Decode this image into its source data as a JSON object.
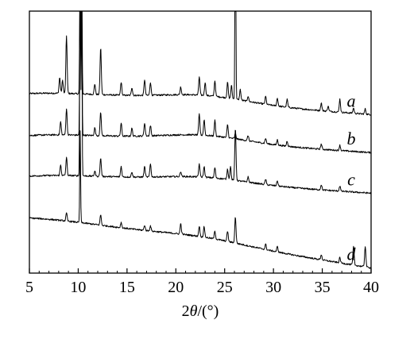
{
  "chart_data": {
    "type": "line",
    "title": "",
    "xlabel_parts": {
      "prefix": "2",
      "symbol": "θ",
      "suffix": "/(°)"
    },
    "ylabel": "",
    "xlim": [
      5,
      40
    ],
    "ylim": [
      0,
      1
    ],
    "x_ticks": [
      5,
      10,
      15,
      20,
      25,
      30,
      35,
      40
    ],
    "y_ticks": [],
    "grid": false,
    "legend": "none",
    "line_color": "#000000",
    "series": [
      {
        "label": "a",
        "baseline_start": 0.705,
        "baseline_end": 0.605,
        "hump": 0.025,
        "peaks": [
          [
            8.1,
            0.06
          ],
          [
            8.4,
            0.05
          ],
          [
            8.8,
            0.22
          ],
          [
            10.2,
            0.8
          ],
          [
            10.35,
            0.75
          ],
          [
            11.7,
            0.04
          ],
          [
            12.3,
            0.18
          ],
          [
            14.4,
            0.05
          ],
          [
            15.5,
            0.03
          ],
          [
            16.8,
            0.06
          ],
          [
            17.4,
            0.05
          ],
          [
            20.5,
            0.03
          ],
          [
            22.4,
            0.07
          ],
          [
            23.0,
            0.05
          ],
          [
            24.0,
            0.06
          ],
          [
            25.3,
            0.06
          ],
          [
            25.7,
            0.05
          ],
          [
            26.1,
            1.0
          ],
          [
            26.6,
            0.04
          ],
          [
            27.4,
            0.02
          ],
          [
            29.2,
            0.03
          ],
          [
            30.4,
            0.03
          ],
          [
            31.4,
            0.03
          ],
          [
            34.9,
            0.03
          ],
          [
            35.6,
            0.02
          ],
          [
            36.8,
            0.05
          ],
          [
            38.2,
            0.02
          ],
          [
            39.4,
            0.02
          ]
        ]
      },
      {
        "label": "b",
        "baseline_start": 0.545,
        "baseline_end": 0.46,
        "hump": 0.025,
        "peaks": [
          [
            8.2,
            0.05
          ],
          [
            8.8,
            0.1
          ],
          [
            10.2,
            0.8
          ],
          [
            10.35,
            0.75
          ],
          [
            11.7,
            0.03
          ],
          [
            12.3,
            0.09
          ],
          [
            14.4,
            0.05
          ],
          [
            15.5,
            0.03
          ],
          [
            16.8,
            0.05
          ],
          [
            17.4,
            0.04
          ],
          [
            22.4,
            0.08
          ],
          [
            22.9,
            0.06
          ],
          [
            24.0,
            0.06
          ],
          [
            25.3,
            0.05
          ],
          [
            26.1,
            0.02
          ],
          [
            27.4,
            0.02
          ],
          [
            29.2,
            0.02
          ],
          [
            30.4,
            0.02
          ],
          [
            31.4,
            0.02
          ],
          [
            34.9,
            0.02
          ],
          [
            36.8,
            0.02
          ]
        ]
      },
      {
        "label": "c",
        "baseline_start": 0.39,
        "baseline_end": 0.305,
        "hump": 0.02,
        "peaks": [
          [
            8.2,
            0.04
          ],
          [
            8.8,
            0.07
          ],
          [
            10.2,
            0.8
          ],
          [
            10.35,
            0.75
          ],
          [
            11.7,
            0.02
          ],
          [
            12.3,
            0.07
          ],
          [
            14.4,
            0.04
          ],
          [
            15.5,
            0.02
          ],
          [
            16.8,
            0.04
          ],
          [
            17.4,
            0.05
          ],
          [
            20.5,
            0.02
          ],
          [
            22.4,
            0.05
          ],
          [
            22.9,
            0.04
          ],
          [
            24.0,
            0.04
          ],
          [
            25.3,
            0.04
          ],
          [
            25.6,
            0.05
          ],
          [
            26.1,
            0.2
          ],
          [
            27.4,
            0.02
          ],
          [
            29.2,
            0.02
          ],
          [
            30.4,
            0.02
          ],
          [
            34.9,
            0.02
          ],
          [
            36.8,
            0.02
          ]
        ]
      },
      {
        "label": "d",
        "baseline_start": 0.23,
        "baseline_end": 0.02,
        "hump": 0.015,
        "peaks": [
          [
            8.8,
            0.03
          ],
          [
            10.2,
            0.35
          ],
          [
            12.3,
            0.04
          ],
          [
            14.4,
            0.02
          ],
          [
            16.8,
            0.02
          ],
          [
            17.4,
            0.02
          ],
          [
            20.5,
            0.04
          ],
          [
            22.4,
            0.04
          ],
          [
            22.9,
            0.04
          ],
          [
            24.0,
            0.03
          ],
          [
            25.3,
            0.04
          ],
          [
            26.1,
            0.1
          ],
          [
            29.2,
            0.02
          ],
          [
            30.4,
            0.02
          ],
          [
            34.9,
            0.02
          ],
          [
            36.8,
            0.02
          ],
          [
            38.2,
            0.07
          ],
          [
            39.4,
            0.08
          ]
        ]
      }
    ]
  }
}
